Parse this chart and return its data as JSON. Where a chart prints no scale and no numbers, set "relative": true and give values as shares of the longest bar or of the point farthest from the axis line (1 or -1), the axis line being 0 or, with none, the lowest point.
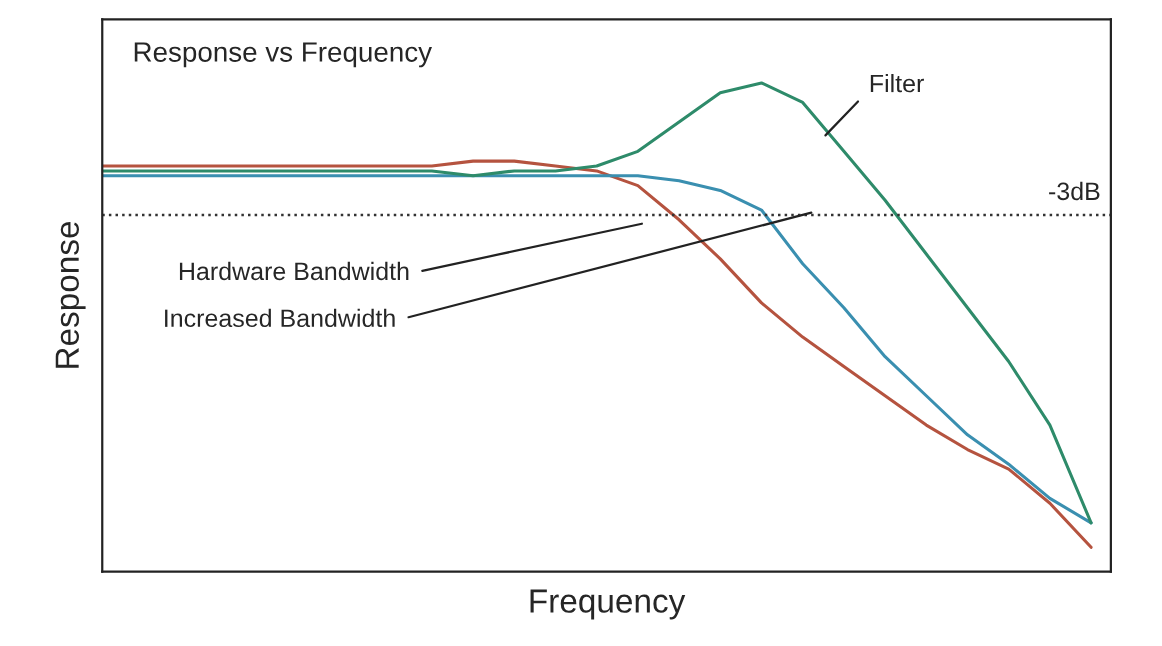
{
  "chart_data": {
    "type": "line",
    "title": "Response vs Frequency",
    "xlabel": "Frequency",
    "ylabel": "Response",
    "relative": true,
    "tick_labels": false,
    "legend": false,
    "marker": "none",
    "line_style": "solid",
    "categories": [
      null,
      null,
      null,
      null,
      null,
      null,
      null,
      null,
      null,
      null,
      null,
      null,
      null,
      null,
      null,
      null,
      null,
      null,
      null,
      null,
      null,
      null,
      null,
      null,
      null
    ],
    "series": [
      {
        "color": "#b5533f",
        "values": [
          0.83,
          0.83,
          0.83,
          0.83,
          0.83,
          0.83,
          0.83,
          0.83,
          0.83,
          0.84,
          0.84,
          0.83,
          0.82,
          0.79,
          0.72,
          0.64,
          0.55,
          0.48,
          0.42,
          0.36,
          0.3,
          0.25,
          0.21,
          0.14,
          0.05
        ]
      },
      {
        "color": "#3a8fb0",
        "values": [
          0.81,
          0.81,
          0.81,
          0.81,
          0.81,
          0.81,
          0.81,
          0.81,
          0.81,
          0.81,
          0.81,
          0.81,
          0.81,
          0.81,
          0.8,
          0.78,
          0.74,
          0.63,
          0.54,
          0.44,
          0.36,
          0.28,
          0.22,
          0.15,
          0.1
        ]
      },
      {
        "color": "#2e8b6a",
        "values": [
          0.82,
          0.82,
          0.82,
          0.82,
          0.82,
          0.82,
          0.82,
          0.82,
          0.82,
          0.81,
          0.82,
          0.82,
          0.83,
          0.86,
          0.92,
          0.98,
          1.0,
          0.96,
          0.86,
          0.76,
          0.65,
          0.54,
          0.43,
          0.3,
          0.1
        ]
      }
    ],
    "ref_lines": [
      {
        "axis": "y",
        "value": 0.73,
        "label": "-3dB",
        "color": "#333333",
        "line_style": "dotted"
      }
    ],
    "annotations": [
      "Filter",
      "Hardware Bandwidth",
      "Increased Bandwidth"
    ]
  }
}
